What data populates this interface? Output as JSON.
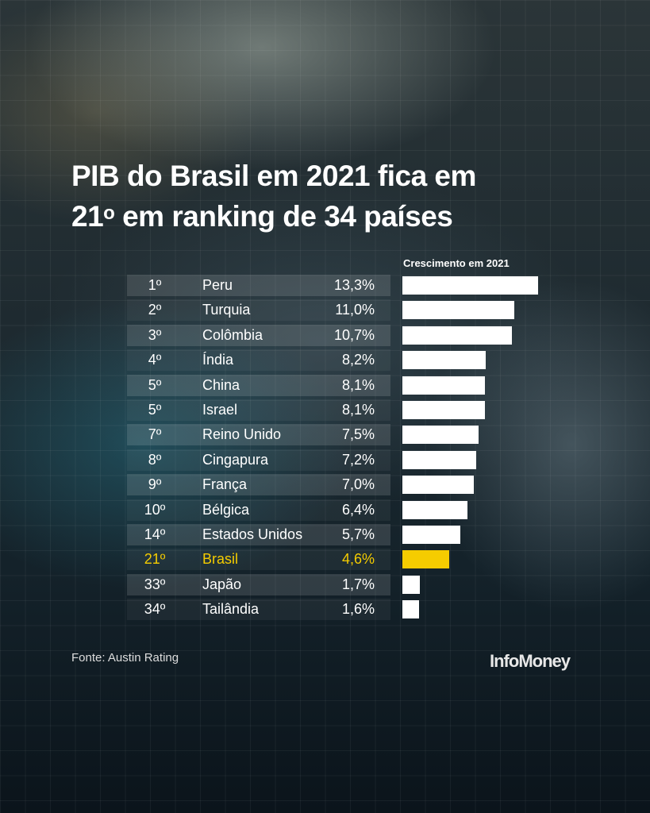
{
  "chart_data": {
    "type": "bar",
    "orientation": "horizontal",
    "title": "PIB do Brasil em 2021 fica em 21º em ranking de 34 países",
    "title_main": "PIB do Brasil em 2021 fica em",
    "title_line2_num": "21",
    "title_line2_sup": "o",
    "title_line2_rest": " em ranking de 34 países",
    "value_header": "Crescimento em 2021",
    "rows": [
      {
        "rank": "1º",
        "country": "Peru",
        "label": "13,3%",
        "value": 13.3
      },
      {
        "rank": "2º",
        "country": "Turquia",
        "label": "11,0%",
        "value": 11.0
      },
      {
        "rank": "3º",
        "country": "Colômbia",
        "label": "10,7%",
        "value": 10.7
      },
      {
        "rank": "4º",
        "country": "Índia",
        "label": "8,2%",
        "value": 8.2
      },
      {
        "rank": "5º",
        "country": "China",
        "label": "8,1%",
        "value": 8.1
      },
      {
        "rank": "5º",
        "country": "Israel",
        "label": "8,1%",
        "value": 8.1
      },
      {
        "rank": "7º",
        "country": "Reino Unido",
        "label": "7,5%",
        "value": 7.5
      },
      {
        "rank": "8º",
        "country": "Cingapura",
        "label": "7,2%",
        "value": 7.2
      },
      {
        "rank": "9º",
        "country": "França",
        "label": "7,0%",
        "value": 7.0
      },
      {
        "rank": "10º",
        "country": "Bélgica",
        "label": "6,4%",
        "value": 6.4
      },
      {
        "rank": "14º",
        "country": "Estados Unidos",
        "label": "5,7%",
        "value": 5.7
      },
      {
        "rank": "21º",
        "country": "Brasil",
        "label": "4,6%",
        "value": 4.6,
        "highlight": true
      },
      {
        "rank": "33º",
        "country": "Japão",
        "label": "1,7%",
        "value": 1.7
      },
      {
        "rank": "34º",
        "country": "Tailândia",
        "label": "1,6%",
        "value": 1.6
      }
    ],
    "unit": "%",
    "colors": {
      "bar": "#ffffff",
      "highlight": "#f5cc00"
    }
  },
  "footer": {
    "source": "Fonte: Austin Rating",
    "logo": "InfoMoney"
  }
}
